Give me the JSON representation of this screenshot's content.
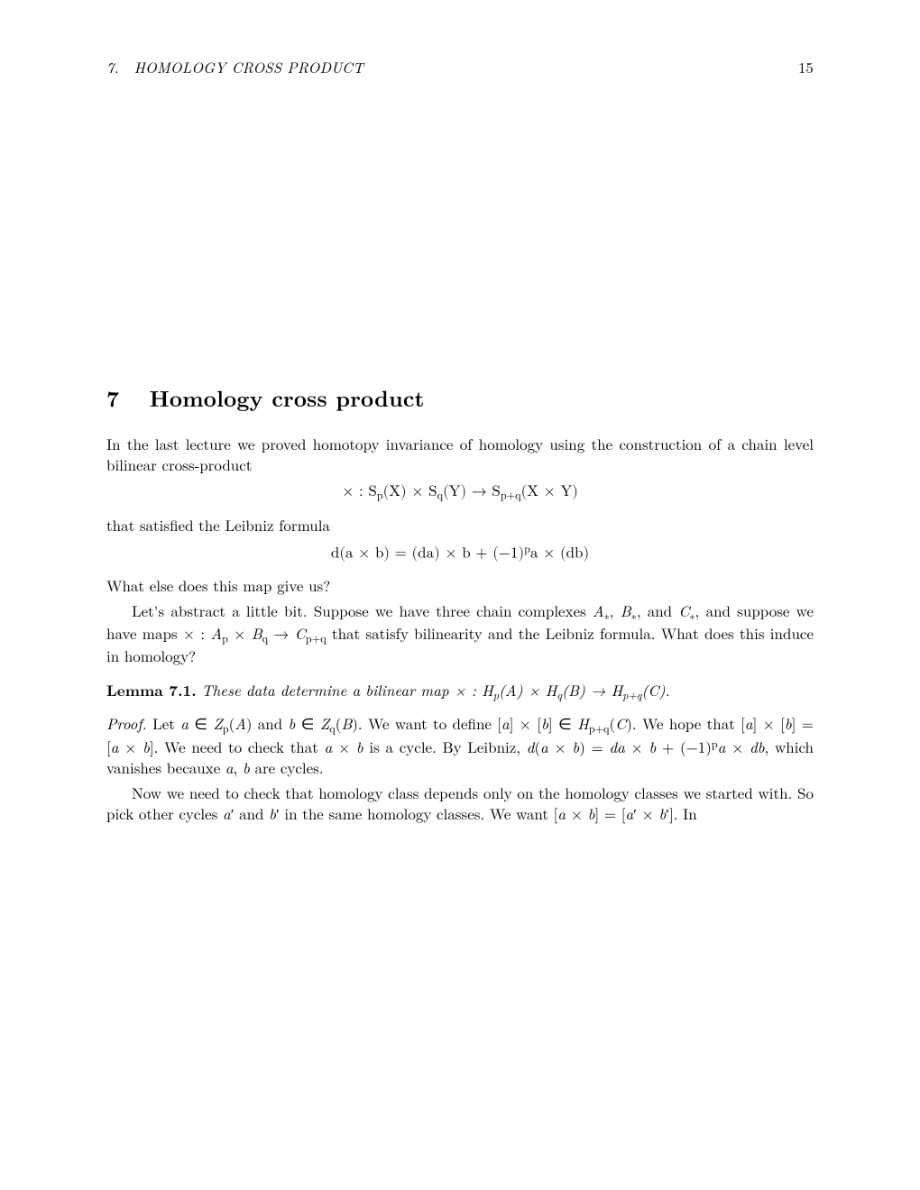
{
  "page": {
    "running_head_left": "7. HOMOLOGY CROSS PRODUCT",
    "running_head_right": "15"
  },
  "section": {
    "number": "7",
    "title": "Homology cross product"
  },
  "para1": "In the last lecture we proved homotopy invariance of homology using the construction of a chain level bilinear cross-product",
  "eq1": "× : S<span class=\"sub\">p</span>(X) × S<span class=\"sub\">q</span>(Y) → S<span class=\"sub\">p+q</span>(X × Y)",
  "para2": "that satisfied the Leibniz formula",
  "eq2": "d(a × b) = (da) × b + (−1)<span class=\"sup\">p</span>a × (db)",
  "para3": "What else does this map give us?",
  "para4": "Let's abstract a little bit. Suppose we have three chain complexes <span class=\"it\">A</span><span class=\"sub\">∗</span>, <span class=\"it\">B</span><span class=\"sub\">∗</span>, and <span class=\"it\">C</span><span class=\"sub\">∗</span>, and suppose we have maps × : <span class=\"it\">A</span><span class=\"sub\">p</span> × <span class=\"it\">B</span><span class=\"sub\">q</span> → <span class=\"it\">C</span><span class=\"sub\">p+q</span> that satisfy bilinearity and the Leibniz formula. What does this induce in homology?",
  "lemma": {
    "head": "Lemma 7.1.",
    "body": "These data determine a bilinear map × : H<span class=\"sub\">p</span>(A) × H<span class=\"sub\">q</span>(B) → H<span class=\"sub\">p+q</span>(C)."
  },
  "proof": {
    "head": "Proof.",
    "p1": "Let <span class=\"it\">a</span> ∈ <span class=\"it\">Z</span><span class=\"sub\">p</span>(<span class=\"it\">A</span>) and <span class=\"it\">b</span> ∈ <span class=\"it\">Z</span><span class=\"sub\">q</span>(<span class=\"it\">B</span>). We want to define [<span class=\"it\">a</span>] × [<span class=\"it\">b</span>] ∈ <span class=\"it\">H</span><span class=\"sub\">p+q</span>(<span class=\"it\">C</span>). We hope that [<span class=\"it\">a</span>] × [<span class=\"it\">b</span>] = [<span class=\"it\">a</span> × <span class=\"it\">b</span>]. We need to check that <span class=\"it\">a</span> × <span class=\"it\">b</span> is a cycle. By Leibniz, <span class=\"it\">d</span>(<span class=\"it\">a</span> × <span class=\"it\">b</span>) = <span class=\"it\">da</span> × <span class=\"it\">b</span> + (−1)<span class=\"sup\">p</span><span class=\"it\">a</span> × <span class=\"it\">db</span>, which vanishes becauxe <span class=\"it\">a</span>, <span class=\"it\">b</span> are cycles.",
    "p2": "Now we need to check that homology class depends only on the homology classes we started with. So pick other cycles <span class=\"it\">a</span>′ and <span class=\"it\">b</span>′ in the same homology classes. We want [<span class=\"it\">a</span> × <span class=\"it\">b</span>] = [<span class=\"it\">a</span>′ × <span class=\"it\">b</span>′]. In"
  }
}
